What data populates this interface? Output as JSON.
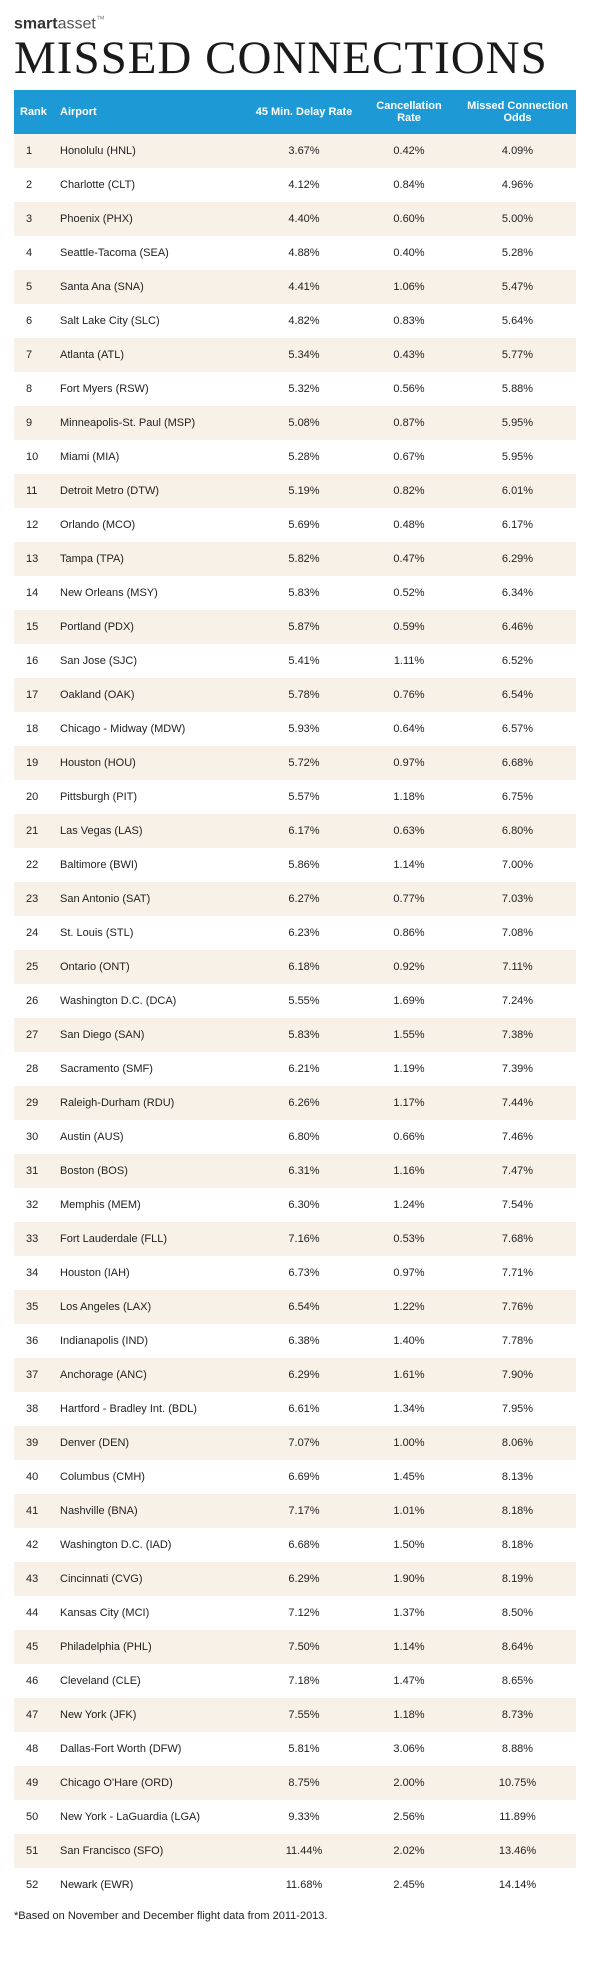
{
  "brand": {
    "bold": "smart",
    "rest": "asset",
    "tm": "™"
  },
  "title": "MISSED CONNECTIONS",
  "footnote": "*Based on November and December flight data from 2011-2013.",
  "table": {
    "header_bg": "#1d9ad6",
    "row_odd_bg": "#f7f1e8",
    "row_even_bg": "#ffffff",
    "columns": [
      "Rank",
      "Airport",
      "45 Min. Delay Rate",
      "Cancellation Rate",
      "Missed Connection Odds"
    ],
    "rows": [
      {
        "rank": "1",
        "airport": "Honolulu (HNL)",
        "delay": "3.67%",
        "cancel": "0.42%",
        "odds": "4.09%"
      },
      {
        "rank": "2",
        "airport": "Charlotte (CLT)",
        "delay": "4.12%",
        "cancel": "0.84%",
        "odds": "4.96%"
      },
      {
        "rank": "3",
        "airport": "Phoenix (PHX)",
        "delay": "4.40%",
        "cancel": "0.60%",
        "odds": "5.00%"
      },
      {
        "rank": "4",
        "airport": "Seattle-Tacoma (SEA)",
        "delay": "4.88%",
        "cancel": "0.40%",
        "odds": "5.28%"
      },
      {
        "rank": "5",
        "airport": "Santa Ana (SNA)",
        "delay": "4.41%",
        "cancel": "1.06%",
        "odds": "5.47%"
      },
      {
        "rank": "6",
        "airport": "Salt Lake City (SLC)",
        "delay": "4.82%",
        "cancel": "0.83%",
        "odds": "5.64%"
      },
      {
        "rank": "7",
        "airport": "Atlanta (ATL)",
        "delay": "5.34%",
        "cancel": "0.43%",
        "odds": "5.77%"
      },
      {
        "rank": "8",
        "airport": "Fort Myers (RSW)",
        "delay": "5.32%",
        "cancel": "0.56%",
        "odds": "5.88%"
      },
      {
        "rank": "9",
        "airport": "Minneapolis-St. Paul (MSP)",
        "delay": "5.08%",
        "cancel": "0.87%",
        "odds": "5.95%"
      },
      {
        "rank": "10",
        "airport": "Miami (MIA)",
        "delay": "5.28%",
        "cancel": "0.67%",
        "odds": "5.95%"
      },
      {
        "rank": "11",
        "airport": "Detroit Metro (DTW)",
        "delay": "5.19%",
        "cancel": "0.82%",
        "odds": "6.01%"
      },
      {
        "rank": "12",
        "airport": "Orlando (MCO)",
        "delay": "5.69%",
        "cancel": "0.48%",
        "odds": "6.17%"
      },
      {
        "rank": "13",
        "airport": "Tampa (TPA)",
        "delay": "5.82%",
        "cancel": "0.47%",
        "odds": "6.29%"
      },
      {
        "rank": "14",
        "airport": "New Orleans (MSY)",
        "delay": "5.83%",
        "cancel": "0.52%",
        "odds": "6.34%"
      },
      {
        "rank": "15",
        "airport": "Portland (PDX)",
        "delay": "5.87%",
        "cancel": "0.59%",
        "odds": "6.46%"
      },
      {
        "rank": "16",
        "airport": "San Jose (SJC)",
        "delay": "5.41%",
        "cancel": "1.11%",
        "odds": "6.52%"
      },
      {
        "rank": "17",
        "airport": "Oakland (OAK)",
        "delay": "5.78%",
        "cancel": "0.76%",
        "odds": "6.54%"
      },
      {
        "rank": "18",
        "airport": "Chicago - Midway (MDW)",
        "delay": "5.93%",
        "cancel": "0.64%",
        "odds": "6.57%"
      },
      {
        "rank": "19",
        "airport": "Houston (HOU)",
        "delay": "5.72%",
        "cancel": "0.97%",
        "odds": "6.68%"
      },
      {
        "rank": "20",
        "airport": "Pittsburgh (PIT)",
        "delay": "5.57%",
        "cancel": "1.18%",
        "odds": "6.75%"
      },
      {
        "rank": "21",
        "airport": "Las Vegas (LAS)",
        "delay": "6.17%",
        "cancel": "0.63%",
        "odds": "6.80%"
      },
      {
        "rank": "22",
        "airport": "Baltimore (BWI)",
        "delay": "5.86%",
        "cancel": "1.14%",
        "odds": "7.00%"
      },
      {
        "rank": "23",
        "airport": "San Antonio (SAT)",
        "delay": "6.27%",
        "cancel": "0.77%",
        "odds": "7.03%"
      },
      {
        "rank": "24",
        "airport": "St. Louis (STL)",
        "delay": "6.23%",
        "cancel": "0.86%",
        "odds": "7.08%"
      },
      {
        "rank": "25",
        "airport": "Ontario (ONT)",
        "delay": "6.18%",
        "cancel": "0.92%",
        "odds": "7.11%"
      },
      {
        "rank": "26",
        "airport": "Washington D.C. (DCA)",
        "delay": "5.55%",
        "cancel": "1.69%",
        "odds": "7.24%"
      },
      {
        "rank": "27",
        "airport": "San Diego (SAN)",
        "delay": "5.83%",
        "cancel": "1.55%",
        "odds": "7.38%"
      },
      {
        "rank": "28",
        "airport": "Sacramento (SMF)",
        "delay": "6.21%",
        "cancel": "1.19%",
        "odds": "7.39%"
      },
      {
        "rank": "29",
        "airport": "Raleigh-Durham (RDU)",
        "delay": "6.26%",
        "cancel": "1.17%",
        "odds": "7.44%"
      },
      {
        "rank": "30",
        "airport": "Austin (AUS)",
        "delay": "6.80%",
        "cancel": "0.66%",
        "odds": "7.46%"
      },
      {
        "rank": "31",
        "airport": "Boston (BOS)",
        "delay": "6.31%",
        "cancel": "1.16%",
        "odds": "7.47%"
      },
      {
        "rank": "32",
        "airport": "Memphis (MEM)",
        "delay": "6.30%",
        "cancel": "1.24%",
        "odds": "7.54%"
      },
      {
        "rank": "33",
        "airport": "Fort Lauderdale (FLL)",
        "delay": "7.16%",
        "cancel": "0.53%",
        "odds": "7.68%"
      },
      {
        "rank": "34",
        "airport": "Houston (IAH)",
        "delay": "6.73%",
        "cancel": "0.97%",
        "odds": "7.71%"
      },
      {
        "rank": "35",
        "airport": "Los Angeles (LAX)",
        "delay": "6.54%",
        "cancel": "1.22%",
        "odds": "7.76%"
      },
      {
        "rank": "36",
        "airport": "Indianapolis (IND)",
        "delay": "6.38%",
        "cancel": "1.40%",
        "odds": "7.78%"
      },
      {
        "rank": "37",
        "airport": "Anchorage (ANC)",
        "delay": "6.29%",
        "cancel": "1.61%",
        "odds": "7.90%"
      },
      {
        "rank": "38",
        "airport": "Hartford - Bradley Int. (BDL)",
        "delay": "6.61%",
        "cancel": "1.34%",
        "odds": "7.95%"
      },
      {
        "rank": "39",
        "airport": "Denver (DEN)",
        "delay": "7.07%",
        "cancel": "1.00%",
        "odds": "8.06%"
      },
      {
        "rank": "40",
        "airport": "Columbus (CMH)",
        "delay": "6.69%",
        "cancel": "1.45%",
        "odds": "8.13%"
      },
      {
        "rank": "41",
        "airport": "Nashville (BNA)",
        "delay": "7.17%",
        "cancel": "1.01%",
        "odds": "8.18%"
      },
      {
        "rank": "42",
        "airport": "Washington D.C. (IAD)",
        "delay": "6.68%",
        "cancel": "1.50%",
        "odds": "8.18%"
      },
      {
        "rank": "43",
        "airport": "Cincinnati (CVG)",
        "delay": "6.29%",
        "cancel": "1.90%",
        "odds": "8.19%"
      },
      {
        "rank": "44",
        "airport": "Kansas City (MCI)",
        "delay": "7.12%",
        "cancel": "1.37%",
        "odds": "8.50%"
      },
      {
        "rank": "45",
        "airport": "Philadelphia (PHL)",
        "delay": "7.50%",
        "cancel": "1.14%",
        "odds": "8.64%"
      },
      {
        "rank": "46",
        "airport": "Cleveland (CLE)",
        "delay": "7.18%",
        "cancel": "1.47%",
        "odds": "8.65%"
      },
      {
        "rank": "47",
        "airport": "New York (JFK)",
        "delay": "7.55%",
        "cancel": "1.18%",
        "odds": "8.73%"
      },
      {
        "rank": "48",
        "airport": "Dallas-Fort Worth (DFW)",
        "delay": "5.81%",
        "cancel": "3.06%",
        "odds": "8.88%"
      },
      {
        "rank": "49",
        "airport": "Chicago O'Hare (ORD)",
        "delay": "8.75%",
        "cancel": "2.00%",
        "odds": "10.75%"
      },
      {
        "rank": "50",
        "airport": "New York - LaGuardia (LGA)",
        "delay": "9.33%",
        "cancel": "2.56%",
        "odds": "11.89%"
      },
      {
        "rank": "51",
        "airport": "San Francisco (SFO)",
        "delay": "11.44%",
        "cancel": "2.02%",
        "odds": "13.46%"
      },
      {
        "rank": "52",
        "airport": "Newark (EWR)",
        "delay": "11.68%",
        "cancel": "2.45%",
        "odds": "14.14%"
      }
    ]
  }
}
